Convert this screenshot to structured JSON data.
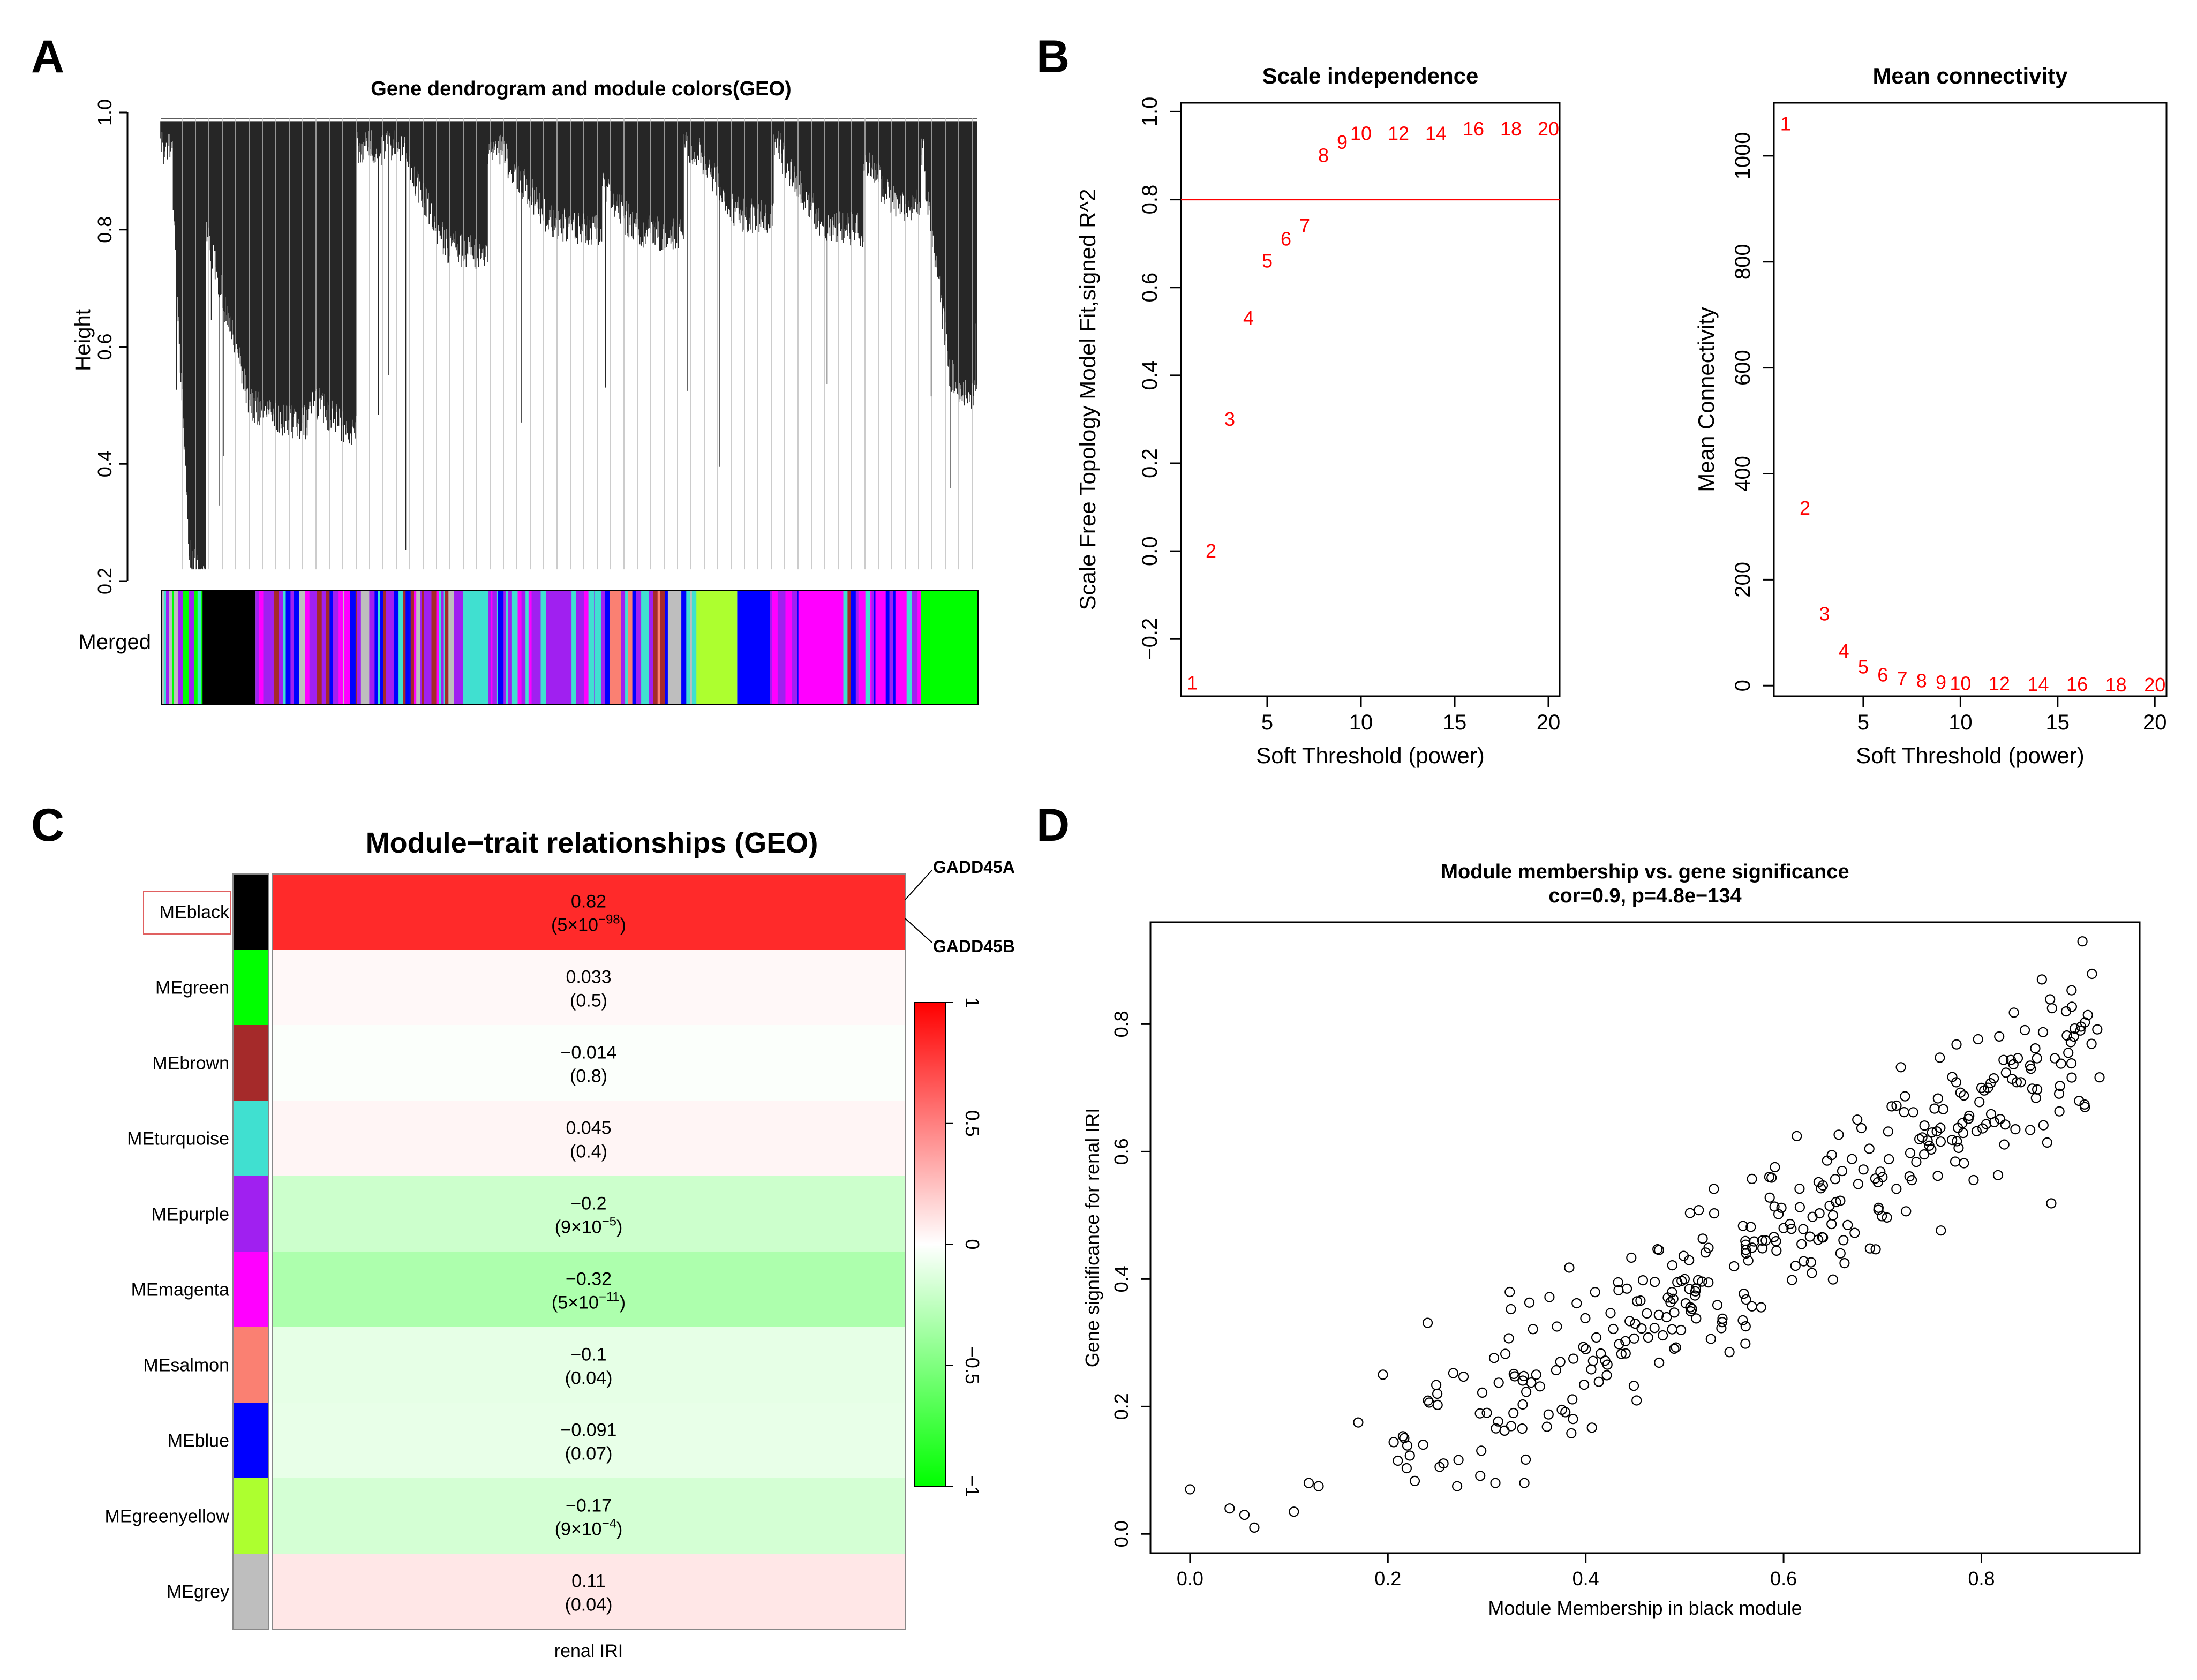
{
  "panels": {
    "a": "A",
    "b": "B",
    "c": "C",
    "d": "D"
  },
  "dendro": {
    "title": "Gene dendrogram and module colors(GEO)",
    "ylabel": "Height",
    "yticks": [
      "0.2",
      "0.4",
      "0.6",
      "0.8",
      "1.0"
    ],
    "ylim": [
      0.2,
      1.0
    ],
    "colorbar_label": "Merged",
    "module_colors": {
      "black": "#000000",
      "green": "#00ff00",
      "purple": "#a020f0",
      "magenta": "#ff00ff",
      "turquoise": "#40e0d0",
      "blue": "#0000ff",
      "brown": "#a52a2a",
      "salmon": "#fa8072",
      "greenyellow": "#adff2f",
      "grey": "#bebebe"
    }
  },
  "chart_data": [
    {
      "type": "scatter",
      "title": "Scale independence",
      "xlabel": "Soft Threshold (power)",
      "ylabel": "Scale Free Topology Model Fit,signed R^2",
      "xticks": [
        "5",
        "10",
        "15",
        "20"
      ],
      "yticks": [
        "−0.2",
        "0.0",
        "0.2",
        "0.4",
        "0.6",
        "0.8",
        "1.0"
      ],
      "xlim": [
        0.4,
        20.6
      ],
      "ylim": [
        -0.33,
        1.02
      ],
      "hline": 0.8,
      "powers": [
        "1",
        "2",
        "3",
        "4",
        "5",
        "6",
        "7",
        "8",
        "9",
        "10",
        "12",
        "14",
        "16",
        "18",
        "20"
      ],
      "x": [
        1,
        2,
        3,
        4,
        5,
        6,
        7,
        8,
        9,
        10,
        12,
        14,
        16,
        18,
        20
      ],
      "y": [
        -0.3,
        0.0,
        0.3,
        0.53,
        0.66,
        0.71,
        0.74,
        0.9,
        0.93,
        0.95,
        0.95,
        0.95,
        0.96,
        0.96,
        0.96
      ]
    },
    {
      "type": "scatter",
      "title": "Mean connectivity",
      "xlabel": "Soft Threshold (power)",
      "ylabel": "Mean Connectivity",
      "xticks": [
        "5",
        "10",
        "15",
        "20"
      ],
      "yticks": [
        "0",
        "200",
        "400",
        "600",
        "800",
        "1000"
      ],
      "xlim": [
        0.4,
        20.6
      ],
      "ylim": [
        -20,
        1100
      ],
      "powers": [
        "1",
        "2",
        "3",
        "4",
        "5",
        "6",
        "7",
        "8",
        "9",
        "10",
        "12",
        "14",
        "16",
        "18",
        "20"
      ],
      "x": [
        1,
        2,
        3,
        4,
        5,
        6,
        7,
        8,
        9,
        10,
        12,
        14,
        16,
        18,
        20
      ],
      "y": [
        1060,
        335,
        135,
        65,
        35,
        20,
        13,
        9,
        6,
        4,
        3,
        2,
        2,
        1,
        1
      ]
    },
    {
      "type": "heatmap",
      "title": "Module−trait relationships (GEO)",
      "xlabel": "renal IRI",
      "modules": [
        "MEblack",
        "MEgreen",
        "MEbrown",
        "MEturquoise",
        "MEpurple",
        "MEmagenta",
        "MEsalmon",
        "MEblue",
        "MEgreenyellow",
        "MEgrey"
      ],
      "module_colors": [
        "#000000",
        "#00ff00",
        "#a52a2a",
        "#40e0d0",
        "#a020f0",
        "#ff00ff",
        "#fa8072",
        "#0000ff",
        "#adff2f",
        "#bebebe"
      ],
      "values": [
        0.82,
        0.033,
        -0.014,
        0.045,
        -0.2,
        -0.32,
        -0.1,
        -0.091,
        -0.17,
        0.11
      ],
      "labels": [
        "0.82",
        "0.033",
        "−0.014",
        "0.045",
        "−0.2",
        "−0.32",
        "−0.1",
        "−0.091",
        "−0.17",
        "0.11"
      ],
      "pvalues": [
        {
          "base": "(5×10",
          "exp": "−98",
          "close": ")"
        },
        {
          "base": "(0.5)",
          "exp": "",
          "close": ""
        },
        {
          "base": "(0.8)",
          "exp": "",
          "close": ""
        },
        {
          "base": "(0.4)",
          "exp": "",
          "close": ""
        },
        {
          "base": "(9×10",
          "exp": "−5",
          "close": ")"
        },
        {
          "base": "(5×10",
          "exp": "−11",
          "close": ")"
        },
        {
          "base": "(0.04)",
          "exp": "",
          "close": ""
        },
        {
          "base": "(0.07)",
          "exp": "",
          "close": ""
        },
        {
          "base": "(9×10",
          "exp": "−4",
          "close": ")"
        },
        {
          "base": "(0.04)",
          "exp": "",
          "close": ""
        }
      ],
      "scale_ticks": [
        "1",
        "0.5",
        "0",
        "−0.5",
        "−1"
      ],
      "zlim": [
        -1,
        1
      ],
      "highlighted_module": "MEblack",
      "annotations": [
        "GADD45A",
        "GADD45B"
      ]
    },
    {
      "type": "scatter",
      "title": "Module membership vs. gene significance",
      "subtitle": "cor=0.9, p=4.8e−134",
      "xlabel": "Module Membership in black module",
      "ylabel": "Gene significance for renal  IRI",
      "xticks": [
        "0.0",
        "0.2",
        "0.4",
        "0.6",
        "0.8"
      ],
      "yticks": [
        "0.0",
        "0.2",
        "0.4",
        "0.6",
        "0.8"
      ],
      "xlim": [
        -0.04,
        0.96
      ],
      "ylim": [
        -0.03,
        0.96
      ],
      "n_points": 360,
      "cor": 0.9,
      "p": "4.8e−134",
      "x_sample": [
        0.0,
        0.04,
        0.055,
        0.065,
        0.105,
        0.12,
        0.13,
        0.17,
        0.195,
        0.21,
        0.25,
        0.27,
        0.3,
        0.35,
        0.4,
        0.45,
        0.5,
        0.55,
        0.6,
        0.65,
        0.7,
        0.75,
        0.8,
        0.85,
        0.9
      ],
      "y_sample": [
        0.07,
        0.04,
        0.03,
        0.01,
        0.035,
        0.08,
        0.075,
        0.175,
        0.25,
        0.115,
        0.22,
        0.075,
        0.19,
        0.25,
        0.29,
        0.33,
        0.4,
        0.42,
        0.48,
        0.5,
        0.56,
        0.63,
        0.7,
        0.73,
        0.79
      ]
    }
  ]
}
